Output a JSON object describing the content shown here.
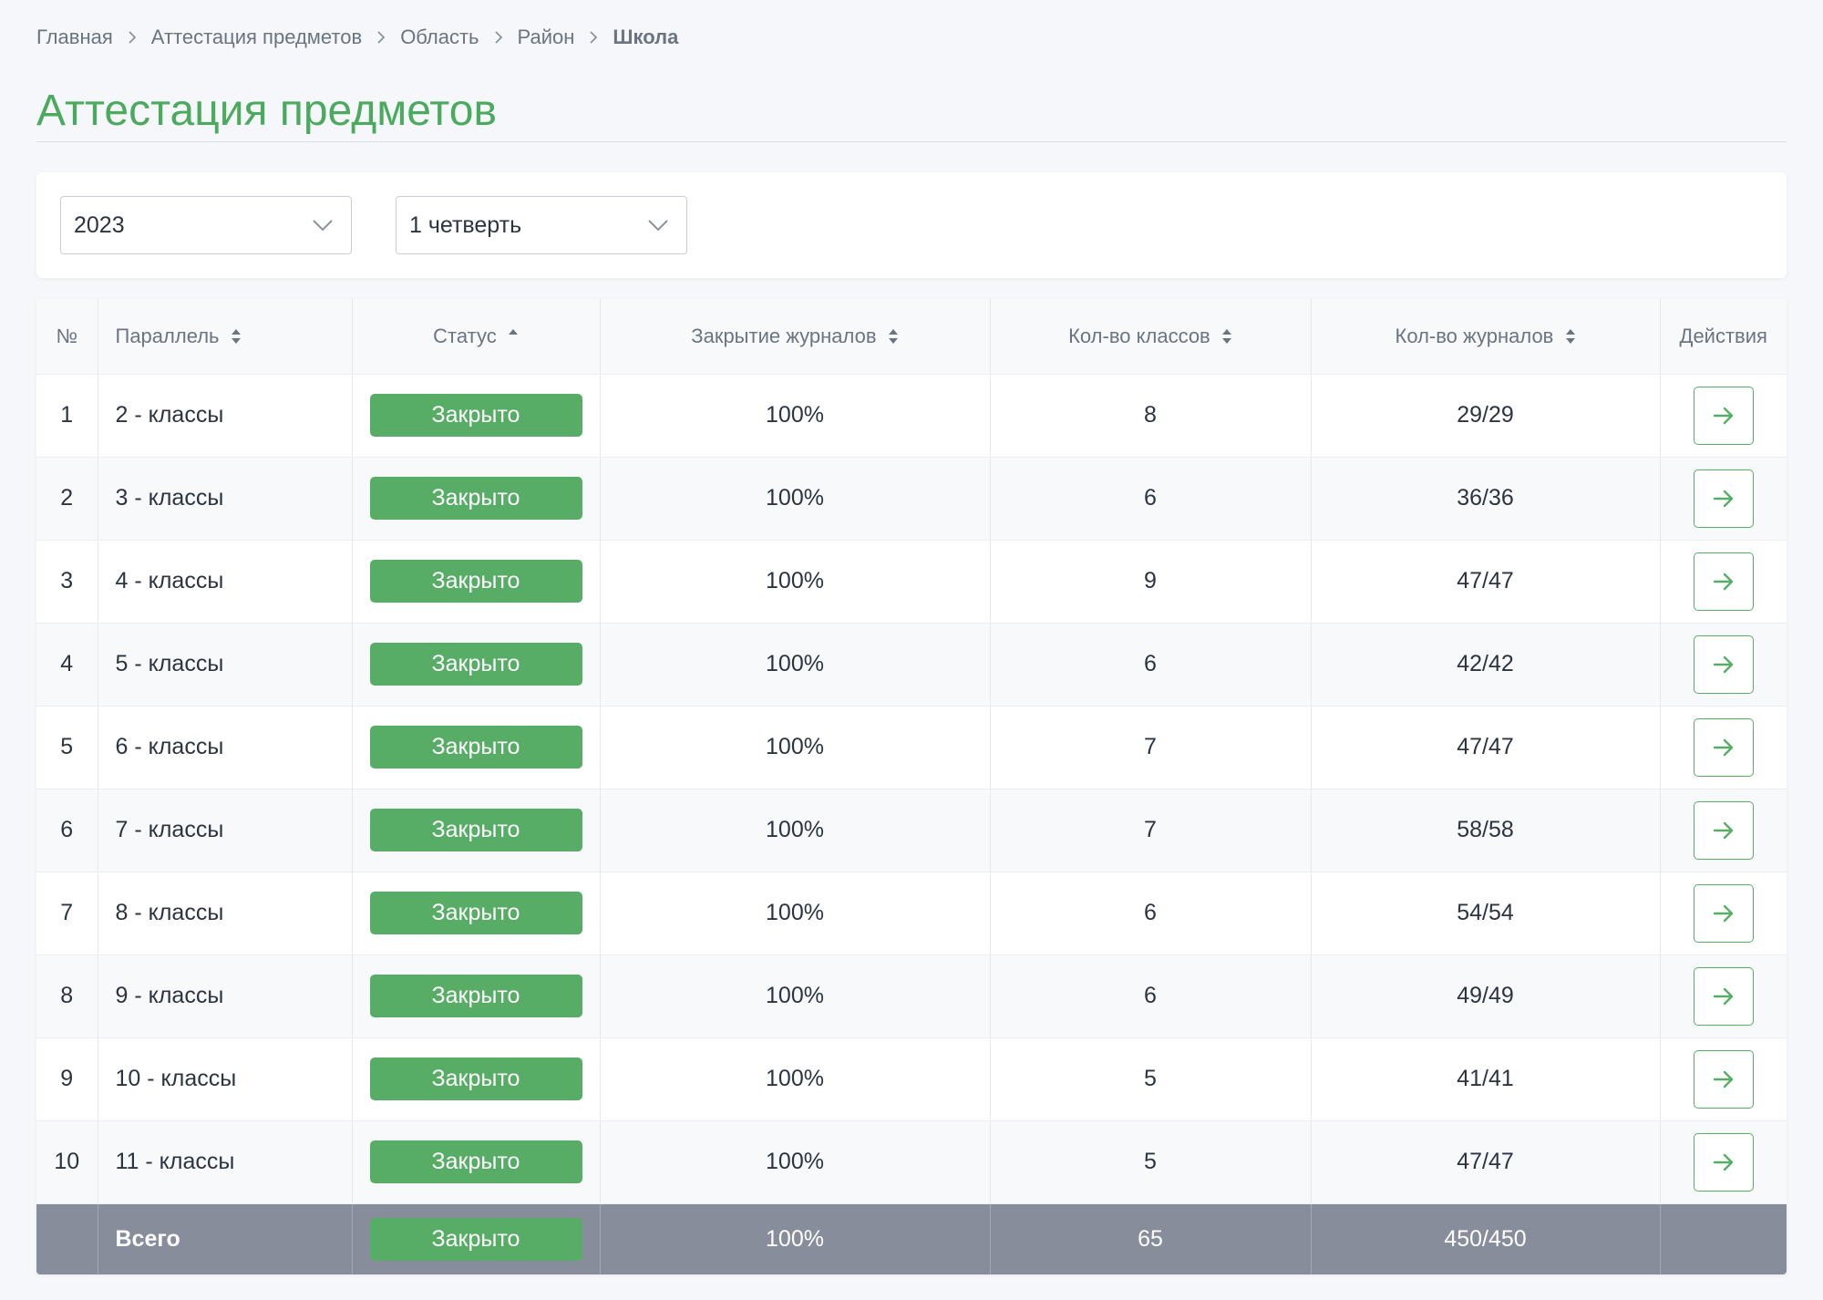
{
  "breadcrumb": {
    "items": [
      "Главная",
      "Аттестация предметов",
      "Область",
      "Район"
    ],
    "current": "Школа"
  },
  "page_title": "Аттестация предметов",
  "filters": {
    "year": "2023",
    "quarter": "1 четверть"
  },
  "table": {
    "headers": {
      "num": "№",
      "parallel": "Параллель",
      "status": "Статус",
      "closing": "Закрытие журналов",
      "classes": "Кол-во классов",
      "journals": "Кол-во журналов",
      "actions": "Действия"
    },
    "rows": [
      {
        "num": "1",
        "parallel": "2 - классы",
        "status": "Закрыто",
        "closing": "100%",
        "classes": "8",
        "journals": "29/29"
      },
      {
        "num": "2",
        "parallel": "3 - классы",
        "status": "Закрыто",
        "closing": "100%",
        "classes": "6",
        "journals": "36/36"
      },
      {
        "num": "3",
        "parallel": "4 - классы",
        "status": "Закрыто",
        "closing": "100%",
        "classes": "9",
        "journals": "47/47"
      },
      {
        "num": "4",
        "parallel": "5 - классы",
        "status": "Закрыто",
        "closing": "100%",
        "classes": "6",
        "journals": "42/42"
      },
      {
        "num": "5",
        "parallel": "6 - классы",
        "status": "Закрыто",
        "closing": "100%",
        "classes": "7",
        "journals": "47/47"
      },
      {
        "num": "6",
        "parallel": "7 - классы",
        "status": "Закрыто",
        "closing": "100%",
        "classes": "7",
        "journals": "58/58"
      },
      {
        "num": "7",
        "parallel": "8 - классы",
        "status": "Закрыто",
        "closing": "100%",
        "classes": "6",
        "journals": "54/54"
      },
      {
        "num": "8",
        "parallel": "9 - классы",
        "status": "Закрыто",
        "closing": "100%",
        "classes": "6",
        "journals": "49/49"
      },
      {
        "num": "9",
        "parallel": "10 - классы",
        "status": "Закрыто",
        "closing": "100%",
        "classes": "5",
        "journals": "41/41"
      },
      {
        "num": "10",
        "parallel": "11 - классы",
        "status": "Закрыто",
        "closing": "100%",
        "classes": "5",
        "journals": "47/47"
      }
    ],
    "total": {
      "label": "Всего",
      "status": "Закрыто",
      "closing": "100%",
      "classes": "65",
      "journals": "450/450"
    }
  },
  "icons": {
    "breadcrumb_separator": "chevron-right-icon",
    "select_chevron": "chevron-down-icon",
    "sort_both": "sort-icon",
    "sort_asc": "sort-asc-icon",
    "row_action": "arrow-right-icon"
  },
  "colors": {
    "accent": "#58ad66",
    "title": "#4caa5f",
    "total_row": "#878d9b"
  }
}
